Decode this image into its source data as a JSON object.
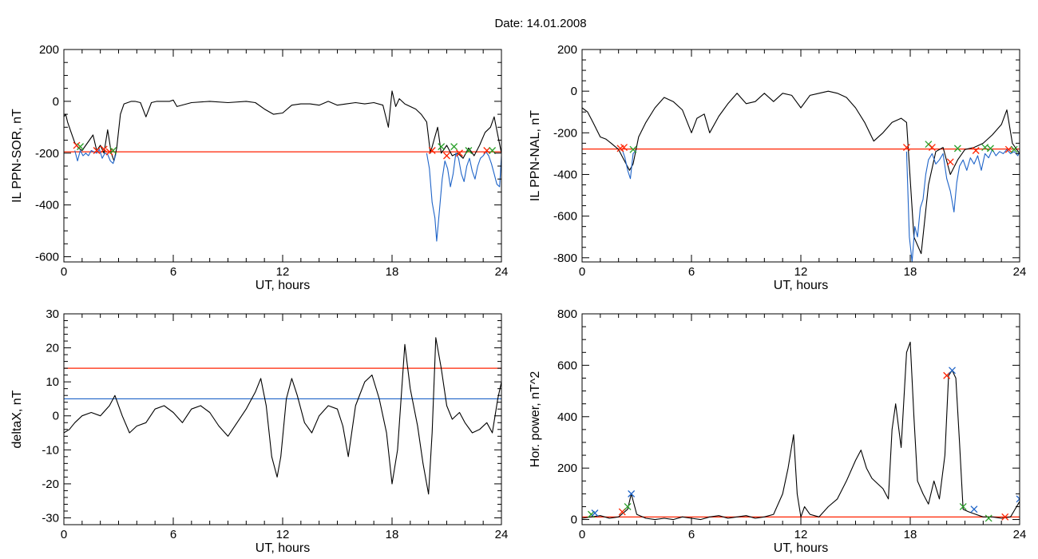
{
  "page": {
    "title": "Date:  14.01.2008"
  },
  "chart_data": [
    {
      "id": "il-sor",
      "type": "line",
      "xlabel": "UT, hours",
      "ylabel": "IL PPN-SOR, nT",
      "xlim": [
        0,
        24
      ],
      "ylim": [
        -620,
        200
      ],
      "xticks": [
        0,
        6,
        12,
        18,
        24
      ],
      "yticks": [
        -600,
        -400,
        -200,
        0,
        200
      ],
      "x_minor": 1,
      "y_minor": 50,
      "grid": false,
      "series": [
        {
          "color": "#000000",
          "x": [
            0,
            0.1,
            0.2,
            0.4,
            0.6,
            0.8,
            1.0,
            1.2,
            1.4,
            1.6,
            1.8,
            2.0,
            2.2,
            2.4,
            2.6,
            2.75,
            2.9,
            3.1,
            3.3,
            3.5,
            3.7,
            3.9,
            4.2,
            4.5,
            4.8,
            5.1,
            5.4,
            5.8,
            6.0,
            6.2,
            7,
            8,
            9,
            10,
            10.5,
            11,
            11.5,
            12,
            12.5,
            13,
            13.5,
            14,
            14.5,
            15,
            15.5,
            16,
            16.5,
            17,
            17.5,
            17.8,
            18.0,
            18.2,
            18.4,
            18.7,
            19.0,
            19.3,
            19.6,
            19.9,
            20.1,
            20.3,
            20.5,
            20.7,
            21.0,
            21.3,
            21.6,
            21.9,
            22.2,
            22.5,
            22.8,
            23.1,
            23.4,
            23.6,
            23.8,
            24
          ],
          "y": [
            -60,
            -50,
            -80,
            -120,
            -160,
            -180,
            -190,
            -170,
            -150,
            -130,
            -190,
            -170,
            -200,
            -110,
            -200,
            -230,
            -180,
            -50,
            -10,
            -5,
            0,
            0,
            -5,
            -60,
            -5,
            0,
            0,
            0,
            5,
            -20,
            -5,
            0,
            -5,
            0,
            -5,
            -30,
            -50,
            -45,
            -15,
            -10,
            -10,
            -15,
            0,
            -15,
            -10,
            -5,
            -10,
            -5,
            -15,
            -100,
            40,
            -20,
            10,
            -10,
            -20,
            -30,
            -50,
            -80,
            -200,
            -150,
            -100,
            -200,
            -170,
            -210,
            -200,
            -220,
            -180,
            -210,
            -170,
            -120,
            -100,
            -60,
            -130,
            -200
          ]
        },
        {
          "color": "#1f64c8",
          "x": [
            0.6,
            0.75,
            0.9,
            1.05,
            1.2,
            1.35,
            1.5,
            1.65,
            1.8,
            1.95,
            2.1,
            2.25,
            2.4,
            2.55,
            2.7,
            2.85
          ],
          "y": [
            -190,
            -230,
            -190,
            -210,
            -200,
            -210,
            -190,
            -195,
            -200,
            -185,
            -220,
            -200,
            -205,
            -230,
            -240,
            -205
          ]
        },
        {
          "color": "#1f64c8",
          "x": [
            19.9,
            20.05,
            20.2,
            20.35,
            20.45,
            20.6,
            20.75,
            20.9,
            21.05,
            21.2,
            21.35,
            21.5,
            21.65,
            21.8,
            21.95,
            22.1,
            22.25,
            22.4,
            22.55,
            22.7,
            22.85,
            23.0,
            23.15,
            23.3,
            23.45,
            23.6,
            23.75,
            23.9,
            24.0
          ],
          "y": [
            -200,
            -260,
            -390,
            -450,
            -540,
            -420,
            -300,
            -230,
            -260,
            -330,
            -280,
            -200,
            -220,
            -280,
            -310,
            -250,
            -220,
            -270,
            -300,
            -250,
            -220,
            -210,
            -195,
            -210,
            -240,
            -280,
            -320,
            -330,
            -210
          ]
        }
      ],
      "hlines": [
        {
          "y": -195,
          "color": "#ff2200"
        }
      ],
      "markers": [
        {
          "x": 0.7,
          "y": -170,
          "color": "#ff2200"
        },
        {
          "x": 0.9,
          "y": -175,
          "color": "#2aa02a"
        },
        {
          "x": 1.8,
          "y": -190,
          "color": "#ff2200"
        },
        {
          "x": 2.2,
          "y": -185,
          "color": "#ff2200"
        },
        {
          "x": 2.5,
          "y": -195,
          "color": "#ff2200"
        },
        {
          "x": 2.7,
          "y": -190,
          "color": "#2aa02a"
        },
        {
          "x": 20.2,
          "y": -190,
          "color": "#ff2200"
        },
        {
          "x": 20.7,
          "y": -175,
          "color": "#2aa02a"
        },
        {
          "x": 21.0,
          "y": -210,
          "color": "#ff2200"
        },
        {
          "x": 21.4,
          "y": -175,
          "color": "#2aa02a"
        },
        {
          "x": 21.7,
          "y": -200,
          "color": "#ff2200"
        },
        {
          "x": 22.2,
          "y": -190,
          "color": "#2aa02a"
        },
        {
          "x": 23.2,
          "y": -190,
          "color": "#ff2200"
        },
        {
          "x": 23.5,
          "y": -190,
          "color": "#2aa02a"
        }
      ]
    },
    {
      "id": "il-nal",
      "type": "line",
      "xlabel": "UT, hours",
      "ylabel": "IL PPN-NAL, nT",
      "xlim": [
        0,
        24
      ],
      "ylim": [
        -820,
        200
      ],
      "xticks": [
        0,
        6,
        12,
        18,
        24
      ],
      "yticks": [
        -800,
        -600,
        -400,
        -200,
        0,
        200
      ],
      "x_minor": 1,
      "y_minor": 50,
      "grid": false,
      "series": [
        {
          "color": "#000000",
          "x": [
            0,
            0.3,
            0.6,
            1.0,
            1.3,
            1.6,
            2.0,
            2.3,
            2.6,
            2.8,
            3.1,
            3.5,
            4,
            4.5,
            5,
            5.5,
            6,
            6.3,
            6.7,
            7,
            7.5,
            8,
            8.5,
            9,
            9.5,
            10,
            10.5,
            11,
            11.5,
            12,
            12.5,
            13,
            13.5,
            14,
            14.5,
            15,
            15.5,
            16,
            16.5,
            17,
            17.5,
            17.8,
            18.2,
            18.6,
            19.0,
            19.4,
            19.8,
            20.2,
            20.6,
            21.0,
            21.5,
            22,
            22.5,
            23,
            23.3,
            23.6,
            24
          ],
          "y": [
            -80,
            -100,
            -150,
            -220,
            -230,
            -250,
            -280,
            -330,
            -380,
            -350,
            -220,
            -150,
            -80,
            -30,
            -50,
            -90,
            -200,
            -130,
            -110,
            -200,
            -120,
            -60,
            -10,
            -60,
            -50,
            -10,
            -50,
            -10,
            -20,
            -80,
            -20,
            -10,
            0,
            -10,
            -30,
            -80,
            -150,
            -240,
            -200,
            -150,
            -130,
            -150,
            -700,
            -780,
            -450,
            -290,
            -270,
            -400,
            -330,
            -280,
            -270,
            -250,
            -210,
            -160,
            -90,
            -250,
            -300
          ]
        },
        {
          "color": "#1f64c8",
          "x": [
            2.2,
            2.35,
            2.5,
            2.65,
            2.8,
            2.95
          ],
          "y": [
            -280,
            -320,
            -380,
            -420,
            -300,
            -285
          ]
        },
        {
          "color": "#1f64c8",
          "x": [
            17.8,
            17.95,
            18.1,
            18.25,
            18.4,
            18.55,
            18.7,
            18.85,
            19.0,
            19.2,
            19.4,
            19.6,
            19.8,
            20.0,
            20.2,
            20.4,
            20.55,
            20.7,
            20.9,
            21.1,
            21.3,
            21.5,
            21.7,
            21.9,
            22.1,
            22.3,
            22.5,
            22.7,
            22.9,
            23.1,
            23.3,
            23.5,
            23.7,
            23.9,
            24.0
          ],
          "y": [
            -290,
            -700,
            -820,
            -650,
            -700,
            -560,
            -520,
            -400,
            -330,
            -300,
            -350,
            -330,
            -300,
            -420,
            -480,
            -580,
            -440,
            -360,
            -330,
            -380,
            -320,
            -350,
            -310,
            -380,
            -300,
            -320,
            -280,
            -310,
            -290,
            -300,
            -280,
            -300,
            -290,
            -310,
            -290
          ]
        }
      ],
      "hlines": [
        {
          "y": -278,
          "color": "#ff2200"
        }
      ],
      "markers": [
        {
          "x": 2.1,
          "y": -275,
          "color": "#ff2200"
        },
        {
          "x": 2.3,
          "y": -270,
          "color": "#ff2200"
        },
        {
          "x": 2.8,
          "y": -280,
          "color": "#2aa02a"
        },
        {
          "x": 17.8,
          "y": -270,
          "color": "#ff2200"
        },
        {
          "x": 19.0,
          "y": -255,
          "color": "#2aa02a"
        },
        {
          "x": 19.2,
          "y": -270,
          "color": "#ff2200"
        },
        {
          "x": 20.2,
          "y": -340,
          "color": "#ff2200"
        },
        {
          "x": 20.6,
          "y": -275,
          "color": "#2aa02a"
        },
        {
          "x": 21.6,
          "y": -285,
          "color": "#ff2200"
        },
        {
          "x": 22.1,
          "y": -270,
          "color": "#2aa02a"
        },
        {
          "x": 22.4,
          "y": -275,
          "color": "#2aa02a"
        },
        {
          "x": 23.4,
          "y": -280,
          "color": "#ff2200"
        },
        {
          "x": 23.7,
          "y": -280,
          "color": "#2aa02a"
        }
      ]
    },
    {
      "id": "delta-x",
      "type": "line",
      "xlabel": "UT, hours",
      "ylabel": "deltaX, nT",
      "xlim": [
        0,
        24
      ],
      "ylim": [
        -32,
        30
      ],
      "xticks": [
        0,
        6,
        12,
        18,
        24
      ],
      "yticks": [
        -30,
        -20,
        -10,
        0,
        10,
        20,
        30
      ],
      "x_minor": 1,
      "y_minor": 2,
      "grid": false,
      "series": [
        {
          "color": "#000000",
          "x": [
            0,
            0.3,
            0.6,
            1.0,
            1.5,
            2.0,
            2.5,
            2.8,
            3.2,
            3.6,
            4.0,
            4.5,
            5.0,
            5.5,
            6.0,
            6.5,
            7.0,
            7.5,
            8.0,
            8.5,
            9.0,
            9.5,
            10.0,
            10.5,
            10.8,
            11.1,
            11.4,
            11.7,
            11.9,
            12.2,
            12.5,
            12.8,
            13.2,
            13.6,
            14.0,
            14.5,
            15.0,
            15.3,
            15.6,
            16.0,
            16.5,
            16.9,
            17.3,
            17.7,
            18.0,
            18.3,
            18.7,
            19.0,
            19.4,
            19.7,
            20.0,
            20.2,
            20.4,
            20.7,
            21.0,
            21.3,
            21.7,
            22.0,
            22.4,
            22.8,
            23.2,
            23.5,
            23.8,
            24.0
          ],
          "y": [
            -5,
            -4,
            -2,
            0,
            1,
            0,
            3,
            6,
            0,
            -5,
            -3,
            -2,
            2,
            3,
            1,
            -2,
            2,
            3,
            1,
            -3,
            -6,
            -2,
            2,
            7,
            11,
            3,
            -12,
            -18,
            -12,
            5,
            11,
            6,
            -2,
            -5,
            0,
            3,
            2,
            -3,
            -12,
            3,
            10,
            12,
            5,
            -5,
            -20,
            -10,
            21,
            8,
            -3,
            -14,
            -23,
            -5,
            23,
            14,
            3,
            -1,
            1,
            -2,
            -5,
            -4,
            -2,
            -5,
            5,
            10
          ]
        }
      ],
      "hlines": [
        {
          "y": 14,
          "color": "#ff2200"
        },
        {
          "y": 5,
          "color": "#1f64c8"
        }
      ],
      "markers": []
    },
    {
      "id": "hor-power",
      "type": "line",
      "xlabel": "UT, hours",
      "ylabel": "Hor. power, nT^2",
      "xlim": [
        0,
        24
      ],
      "ylim": [
        -20,
        800
      ],
      "xticks": [
        0,
        6,
        12,
        18,
        24
      ],
      "yticks": [
        0,
        200,
        400,
        600,
        800
      ],
      "x_minor": 1,
      "y_minor": 50,
      "grid": false,
      "series": [
        {
          "color": "#000000",
          "x": [
            0,
            0.5,
            1.0,
            1.5,
            2.0,
            2.5,
            2.7,
            3.0,
            3.5,
            4,
            4.5,
            5,
            5.5,
            6,
            6.5,
            7,
            7.5,
            8,
            8.5,
            9,
            9.5,
            10,
            10.5,
            11,
            11.3,
            11.6,
            11.8,
            12.0,
            12.2,
            12.5,
            13,
            13.5,
            14,
            14.5,
            15,
            15.3,
            15.6,
            15.9,
            16.2,
            16.5,
            16.8,
            17.0,
            17.2,
            17.5,
            17.8,
            18.0,
            18.2,
            18.4,
            18.7,
            19.0,
            19.3,
            19.6,
            19.9,
            20.1,
            20.3,
            20.5,
            20.7,
            20.9,
            21.2,
            21.6,
            22.0,
            22.5,
            23.0,
            23.5,
            24.0
          ],
          "y": [
            5,
            10,
            15,
            5,
            10,
            40,
            100,
            20,
            5,
            0,
            5,
            0,
            10,
            5,
            0,
            10,
            15,
            5,
            10,
            15,
            5,
            10,
            20,
            100,
            200,
            330,
            100,
            10,
            50,
            20,
            10,
            50,
            80,
            150,
            230,
            270,
            200,
            160,
            140,
            120,
            80,
            350,
            450,
            280,
            650,
            690,
            400,
            150,
            100,
            60,
            150,
            80,
            250,
            560,
            580,
            550,
            300,
            40,
            30,
            20,
            10,
            10,
            5,
            10,
            70
          ]
        }
      ],
      "hlines": [
        {
          "y": 10,
          "color": "#ff2200"
        }
      ],
      "markers": [
        {
          "x": 0.5,
          "y": 20,
          "color": "#2aa02a"
        },
        {
          "x": 0.7,
          "y": 25,
          "color": "#1f64c8"
        },
        {
          "x": 2.2,
          "y": 30,
          "color": "#ff2200"
        },
        {
          "x": 2.5,
          "y": 50,
          "color": "#2aa02a"
        },
        {
          "x": 2.7,
          "y": 100,
          "color": "#1f64c8"
        },
        {
          "x": 20.0,
          "y": 560,
          "color": "#ff2200"
        },
        {
          "x": 20.3,
          "y": 580,
          "color": "#1f64c8"
        },
        {
          "x": 20.9,
          "y": 50,
          "color": "#2aa02a"
        },
        {
          "x": 21.5,
          "y": 40,
          "color": "#1f64c8"
        },
        {
          "x": 22.3,
          "y": 5,
          "color": "#2aa02a"
        },
        {
          "x": 23.2,
          "y": 10,
          "color": "#ff2200"
        },
        {
          "x": 24.0,
          "y": 80,
          "color": "#1f64c8"
        }
      ]
    }
  ]
}
